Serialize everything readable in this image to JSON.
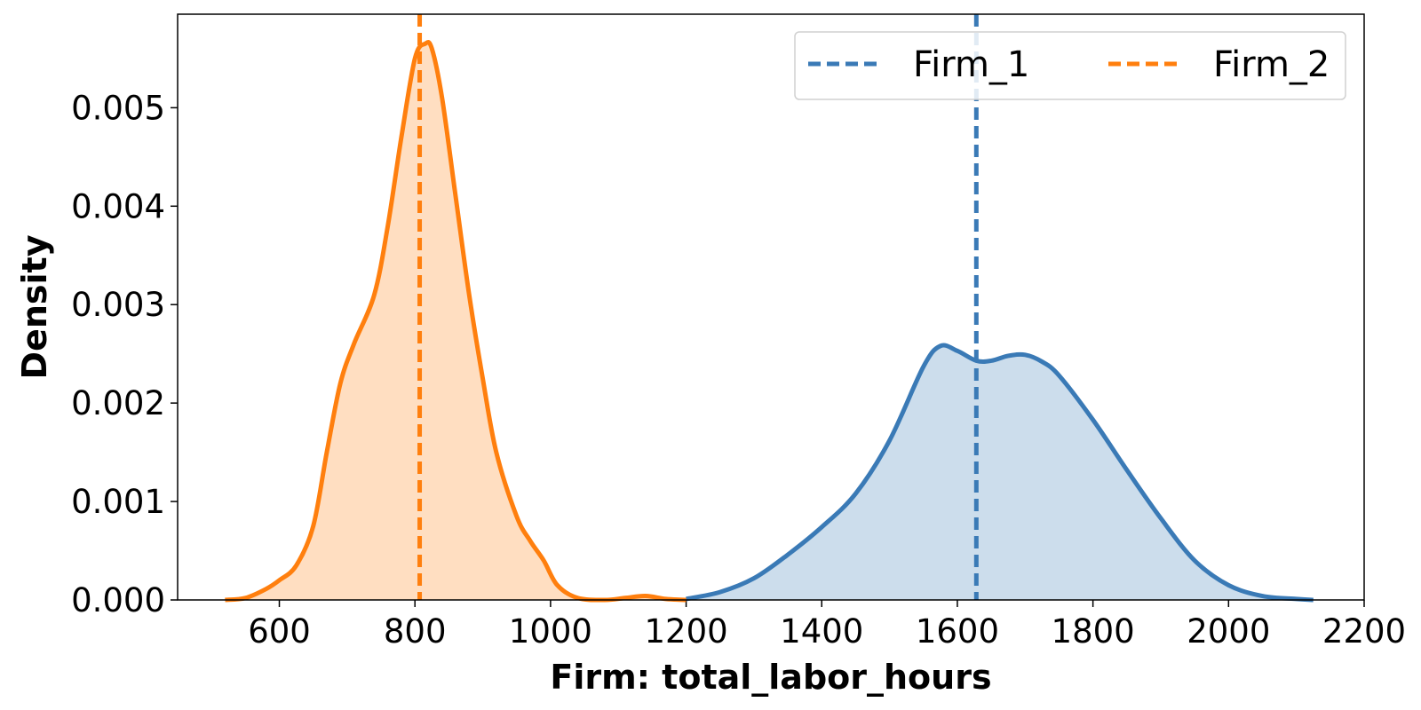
{
  "chart_data": {
    "type": "area",
    "title": "",
    "xlabel": "Firm: total_labor_hours",
    "ylabel": "Density",
    "xlim": [
      450,
      2200
    ],
    "ylim": [
      0,
      0.00595
    ],
    "xticks": [
      600,
      800,
      1000,
      1200,
      1400,
      1600,
      1800,
      2000,
      2200
    ],
    "xtick_labels": [
      "600",
      "800",
      "1000",
      "1200",
      "1400",
      "1600",
      "1800",
      "2000",
      "2200"
    ],
    "yticks": [
      0,
      0.001,
      0.002,
      0.003,
      0.004,
      0.005
    ],
    "ytick_labels": [
      "0.000",
      "0.001",
      "0.002",
      "0.003",
      "0.004",
      "0.005"
    ],
    "grid": false,
    "legend": {
      "placement": "top-right",
      "columns": 2
    },
    "series": [
      {
        "name": "Firm_1",
        "color": "#3a7ab6",
        "mean": 1628,
        "x": [
          1200,
          1250,
          1300,
          1350,
          1400,
          1450,
          1500,
          1550,
          1575,
          1600,
          1628,
          1650,
          1675,
          1700,
          1725,
          1750,
          1800,
          1850,
          1900,
          1950,
          2000,
          2050,
          2100,
          2125
        ],
        "y": [
          1e-05,
          8e-05,
          0.00022,
          0.00046,
          0.00074,
          0.00108,
          0.00162,
          0.00237,
          0.00258,
          0.00253,
          0.00243,
          0.00243,
          0.00248,
          0.00249,
          0.00242,
          0.00228,
          0.00183,
          0.00132,
          0.00083,
          0.0004,
          0.00015,
          4e-05,
          1e-05,
          0.0
        ]
      },
      {
        "name": "Firm_2",
        "color": "#ff7f0e",
        "mean": 807,
        "x": [
          520,
          550,
          580,
          600,
          625,
          650,
          670,
          690,
          710,
          740,
          760,
          780,
          800,
          815,
          825,
          840,
          860,
          880,
          900,
          920,
          950,
          970,
          990,
          1010,
          1040,
          1080,
          1110,
          1140,
          1170,
          1200
        ],
        "y": [
          0.0,
          2e-05,
          0.00011,
          0.0002,
          0.00035,
          0.00075,
          0.0015,
          0.0022,
          0.0026,
          0.0031,
          0.0038,
          0.0047,
          0.0055,
          0.00565,
          0.0056,
          0.0051,
          0.0041,
          0.0031,
          0.00225,
          0.0015,
          0.00085,
          0.0006,
          0.0004,
          0.00015,
          2e-05,
          0.0,
          2e-05,
          4e-05,
          1e-05,
          0.0
        ]
      }
    ]
  }
}
